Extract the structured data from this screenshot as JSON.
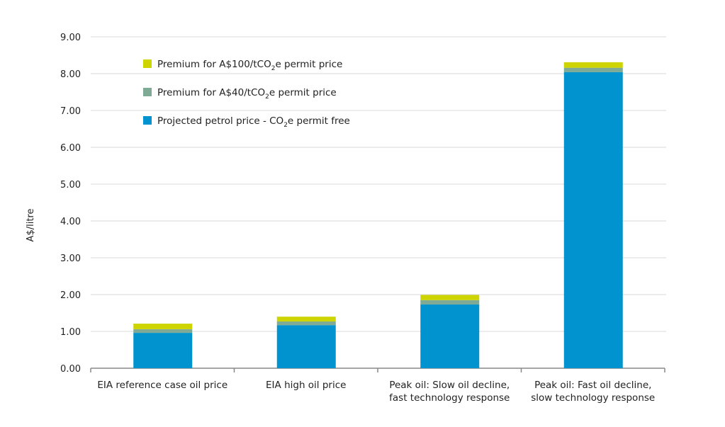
{
  "chart_data": {
    "type": "bar",
    "stacked": true,
    "ylabel": "A$/litre",
    "ylim": [
      0,
      9
    ],
    "yticks": [
      "0.00",
      "1.00",
      "2.00",
      "3.00",
      "4.00",
      "5.00",
      "6.00",
      "7.00",
      "8.00",
      "9.00"
    ],
    "grid": true,
    "legend_position": "top-left",
    "categories": [
      [
        "EIA reference case oil price"
      ],
      [
        "EIA high oil price"
      ],
      [
        "Peak oil: Slow oil decline,",
        "fast technology response"
      ],
      [
        "Peak oil: Fast oil decline,",
        "slow technology response"
      ]
    ],
    "series": [
      {
        "name": "Projected petrol price - CO",
        "sub": "2",
        "suffix": "e permit free",
        "color": "#0093cf",
        "values": [
          0.96,
          1.17,
          1.73,
          8.04
        ]
      },
      {
        "name": "Premium for A$40/tCO",
        "sub": "2",
        "suffix": "e permit price",
        "color": "#7faa96",
        "values": [
          0.1,
          0.1,
          0.12,
          0.12
        ]
      },
      {
        "name": "Premium for A$100/tCO",
        "sub": "2",
        "suffix": "e permit price",
        "color": "#cdd400",
        "values": [
          0.15,
          0.13,
          0.14,
          0.15
        ]
      }
    ]
  }
}
